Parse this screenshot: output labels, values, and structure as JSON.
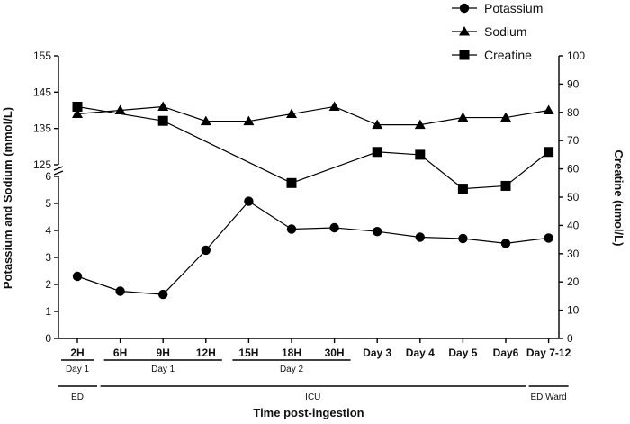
{
  "chart_data": {
    "type": "line",
    "categories": [
      "2H",
      "6H",
      "9H",
      "12H",
      "15H",
      "18H",
      "30H",
      "Day 3",
      "Day 4",
      "Day 5",
      "Day6",
      "Day 7-12"
    ],
    "series": [
      {
        "name": "Potassium",
        "axis": "left-lower",
        "marker": "circle",
        "values": [
          2.3,
          1.75,
          1.63,
          3.27,
          5.08,
          4.05,
          4.1,
          3.96,
          3.75,
          3.7,
          3.52,
          3.72
        ]
      },
      {
        "name": "Sodium",
        "axis": "left-upper",
        "marker": "triangle",
        "values": [
          139,
          140,
          141,
          137,
          137,
          139,
          141,
          136,
          136,
          138,
          138,
          140
        ]
      },
      {
        "name": "Creatine",
        "axis": "right",
        "marker": "square",
        "values": [
          82,
          null,
          77,
          null,
          null,
          55,
          null,
          66,
          65,
          53,
          54,
          66
        ]
      }
    ],
    "y_left_lower": {
      "range": [
        0,
        6
      ],
      "ticks": [
        "0",
        "1",
        "2",
        "3",
        "4",
        "5",
        "6"
      ]
    },
    "y_left_upper": {
      "range": [
        125,
        155
      ],
      "ticks": [
        "125",
        "135",
        "145",
        "155"
      ]
    },
    "y_right": {
      "range": [
        0,
        100
      ],
      "ticks": [
        "0",
        "10",
        "20",
        "30",
        "40",
        "50",
        "60",
        "70",
        "80",
        "90",
        "100"
      ]
    },
    "ylabel_left": "Potassium and Sodium (mmol/L)",
    "ylabel_right": "Creatine (umol/L)",
    "xlabel": "Time post-ingestion",
    "day_groups": [
      {
        "label": "Day 1",
        "from": 0,
        "to": 0
      },
      {
        "label": "Day 1",
        "from": 1,
        "to": 3
      },
      {
        "label": "Day 2",
        "from": 4,
        "to": 6
      }
    ],
    "location_groups": [
      {
        "label": "ED",
        "from": 0,
        "to": 0
      },
      {
        "label": "ICU",
        "from": 1,
        "to": 10
      },
      {
        "label": "ED Ward",
        "from": 11,
        "to": 11
      }
    ],
    "legend": [
      "Potassium",
      "Sodium",
      "Creatine"
    ],
    "legend_position": "top-right"
  }
}
